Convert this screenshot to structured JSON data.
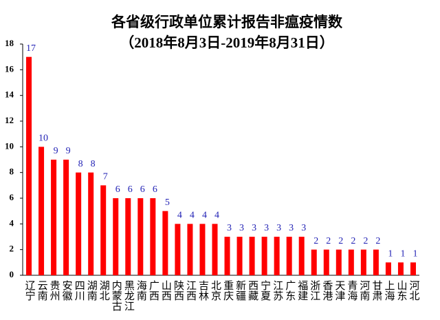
{
  "chart_data": {
    "type": "bar",
    "title": "各省级行政单位累计报告非瘟疫情数",
    "subtitle": "（2018年8月3日-2019年8月31日）",
    "categories": [
      "辽宁",
      "云南",
      "贵州",
      "安徽",
      "四川",
      "湖南",
      "湖北",
      "内蒙古",
      "黑龙江",
      "海南",
      "广西",
      "山西",
      "陕西",
      "江西",
      "吉林",
      "北京",
      "重庆",
      "新疆",
      "西藏",
      "宁夏",
      "江苏",
      "广东",
      "福建",
      "浙江",
      "香港",
      "天津",
      "青海",
      "河南",
      "甘肃",
      "上海",
      "山东",
      "河北"
    ],
    "values": [
      17,
      10,
      9,
      9,
      8,
      8,
      7,
      6,
      6,
      6,
      6,
      5,
      4,
      4,
      4,
      4,
      3,
      3,
      3,
      3,
      3,
      3,
      3,
      2,
      2,
      2,
      2,
      2,
      2,
      1,
      1,
      1
    ],
    "color": "#ff0000",
    "label_color": "#1f1fb4",
    "ylim": [
      0,
      18
    ],
    "yticks": [
      0,
      2,
      4,
      6,
      8,
      10,
      12,
      14,
      16,
      18
    ],
    "grid": false
  }
}
